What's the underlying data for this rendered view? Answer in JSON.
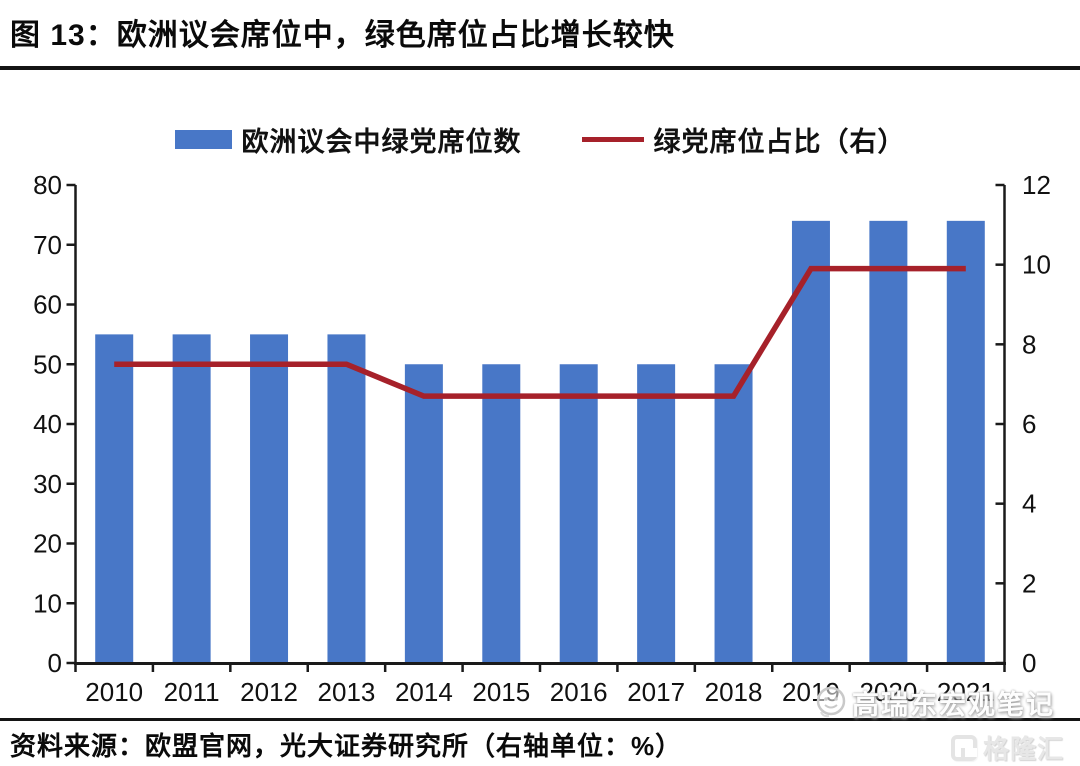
{
  "header": {
    "title": "图 13：欧洲议会席位中，绿色席位占比增长较快"
  },
  "legend": {
    "items": [
      {
        "label": "欧洲议会中绿党席位数",
        "type": "bar",
        "color": "#4877C7"
      },
      {
        "label": "绿党席位占比（右）",
        "type": "line",
        "color": "#A6212A"
      }
    ]
  },
  "chart_data": {
    "type": "bar",
    "title": "图 13：欧洲议会席位中，绿色席位占比增长较快",
    "categories": [
      "2010",
      "2011",
      "2012",
      "2013",
      "2014",
      "2015",
      "2016",
      "2017",
      "2018",
      "2019",
      "2020",
      "2021"
    ],
    "series": [
      {
        "name": "欧洲议会中绿党席位数",
        "type": "bar",
        "axis": "left",
        "color": "#4877C7",
        "values": [
          55,
          55,
          55,
          55,
          50,
          50,
          50,
          50,
          50,
          74,
          74,
          74
        ]
      },
      {
        "name": "绿党席位占比（右）",
        "type": "line",
        "axis": "right",
        "color": "#A6212A",
        "values": [
          7.5,
          7.5,
          7.5,
          7.5,
          6.7,
          6.7,
          6.7,
          6.7,
          6.7,
          9.9,
          9.9,
          9.9
        ]
      }
    ],
    "left_axis": {
      "min": 0,
      "max": 80,
      "step": 10
    },
    "right_axis": {
      "min": 0,
      "max": 12,
      "step": 2,
      "unit": "%"
    },
    "grid": false,
    "legend_position": "top",
    "axis_color": "#1a1a1a"
  },
  "footer": {
    "source": "资料来源：欧盟官网，光大证券研究所（右轴单位：%）"
  },
  "watermark": {
    "account": "高瑞东宏观笔记",
    "platform": "格隆汇"
  }
}
